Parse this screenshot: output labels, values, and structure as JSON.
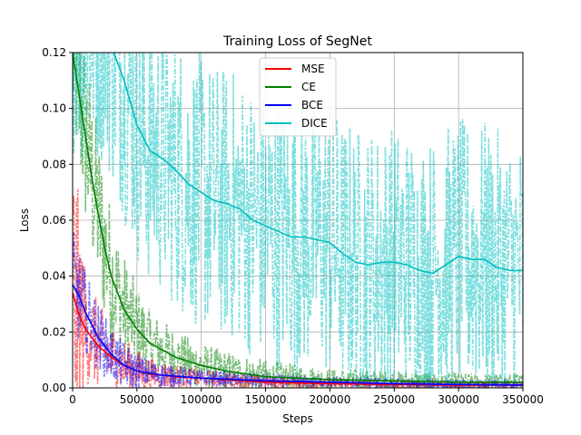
{
  "chart_data": {
    "type": "line",
    "title": "Training Loss of SegNet",
    "xlabel": "Steps",
    "ylabel": "Loss",
    "xlim": [
      0,
      350000
    ],
    "ylim": [
      0,
      0.12
    ],
    "xticks": [
      0,
      50000,
      100000,
      150000,
      200000,
      250000,
      300000,
      350000
    ],
    "xtick_labels": [
      "0",
      "50000",
      "100000",
      "150000",
      "200000",
      "250000",
      "300000",
      "350000"
    ],
    "yticks": [
      0.0,
      0.02,
      0.04,
      0.06,
      0.08,
      0.1,
      0.12
    ],
    "ytick_labels": [
      "0.00",
      "0.02",
      "0.04",
      "0.06",
      "0.08",
      "0.10",
      "0.12"
    ],
    "grid": true,
    "legend_position": "top-center",
    "series": [
      {
        "name": "MSE",
        "color": "#ff0000",
        "smoothed": [
          [
            0,
            0.034
          ],
          [
            5000,
            0.026
          ],
          [
            10000,
            0.021
          ],
          [
            20000,
            0.015
          ],
          [
            30000,
            0.011
          ],
          [
            40000,
            0.008
          ],
          [
            50000,
            0.006
          ],
          [
            60000,
            0.005
          ],
          [
            80000,
            0.004
          ],
          [
            100000,
            0.0035
          ],
          [
            150000,
            0.002
          ],
          [
            200000,
            0.0015
          ],
          [
            250000,
            0.0012
          ],
          [
            300000,
            0.001
          ],
          [
            350000,
            0.001
          ]
        ],
        "raw_spread": [
          [
            0,
            0.06
          ],
          [
            10000,
            0.02
          ],
          [
            30000,
            0.012
          ],
          [
            60000,
            0.006
          ],
          [
            100000,
            0.003
          ],
          [
            200000,
            0.002
          ],
          [
            350000,
            0.0015
          ]
        ]
      },
      {
        "name": "CE",
        "color": "#008000",
        "smoothed": [
          [
            0,
            0.12
          ],
          [
            5000,
            0.105
          ],
          [
            10000,
            0.09
          ],
          [
            15000,
            0.075
          ],
          [
            20000,
            0.062
          ],
          [
            25000,
            0.05
          ],
          [
            30000,
            0.04
          ],
          [
            40000,
            0.028
          ],
          [
            50000,
            0.021
          ],
          [
            60000,
            0.016
          ],
          [
            80000,
            0.011
          ],
          [
            100000,
            0.008
          ],
          [
            120000,
            0.006
          ],
          [
            150000,
            0.004
          ],
          [
            200000,
            0.003
          ],
          [
            250000,
            0.0025
          ],
          [
            300000,
            0.002
          ],
          [
            350000,
            0.002
          ]
        ],
        "raw_spread": [
          [
            0,
            0.03
          ],
          [
            10000,
            0.035
          ],
          [
            20000,
            0.03
          ],
          [
            40000,
            0.02
          ],
          [
            60000,
            0.012
          ],
          [
            100000,
            0.008
          ],
          [
            150000,
            0.006
          ],
          [
            200000,
            0.004
          ],
          [
            350000,
            0.003
          ]
        ]
      },
      {
        "name": "BCE",
        "color": "#0000ff",
        "smoothed": [
          [
            0,
            0.037
          ],
          [
            5000,
            0.033
          ],
          [
            10000,
            0.027
          ],
          [
            20000,
            0.018
          ],
          [
            30000,
            0.012
          ],
          [
            40000,
            0.008
          ],
          [
            50000,
            0.006
          ],
          [
            70000,
            0.0045
          ],
          [
            100000,
            0.0035
          ],
          [
            150000,
            0.0025
          ],
          [
            200000,
            0.002
          ],
          [
            250000,
            0.0015
          ],
          [
            300000,
            0.0012
          ],
          [
            350000,
            0.001
          ]
        ],
        "raw_spread": [
          [
            0,
            0.02
          ],
          [
            10000,
            0.015
          ],
          [
            30000,
            0.01
          ],
          [
            60000,
            0.005
          ],
          [
            100000,
            0.003
          ],
          [
            200000,
            0.002
          ],
          [
            350000,
            0.0015
          ]
        ]
      },
      {
        "name": "DICE",
        "color": "#00bfbf",
        "smoothed": [
          [
            0,
            0.13
          ],
          [
            15000,
            0.13
          ],
          [
            25000,
            0.13
          ],
          [
            32000,
            0.12
          ],
          [
            40000,
            0.11
          ],
          [
            50000,
            0.094
          ],
          [
            60000,
            0.085
          ],
          [
            70000,
            0.082
          ],
          [
            80000,
            0.078
          ],
          [
            90000,
            0.073
          ],
          [
            100000,
            0.07
          ],
          [
            110000,
            0.067
          ],
          [
            120000,
            0.066
          ],
          [
            130000,
            0.064
          ],
          [
            140000,
            0.06
          ],
          [
            150000,
            0.058
          ],
          [
            160000,
            0.056
          ],
          [
            170000,
            0.054
          ],
          [
            180000,
            0.054
          ],
          [
            190000,
            0.053
          ],
          [
            200000,
            0.052
          ],
          [
            210000,
            0.048
          ],
          [
            220000,
            0.045
          ],
          [
            230000,
            0.044
          ],
          [
            240000,
            0.045
          ],
          [
            250000,
            0.045
          ],
          [
            260000,
            0.044
          ],
          [
            270000,
            0.042
          ],
          [
            280000,
            0.041
          ],
          [
            290000,
            0.044
          ],
          [
            300000,
            0.047
          ],
          [
            310000,
            0.046
          ],
          [
            320000,
            0.046
          ],
          [
            330000,
            0.043
          ],
          [
            340000,
            0.042
          ],
          [
            350000,
            0.042
          ]
        ],
        "raw_spread": [
          [
            0,
            0.05
          ],
          [
            50000,
            0.05
          ],
          [
            100000,
            0.05
          ],
          [
            150000,
            0.05
          ],
          [
            200000,
            0.05
          ],
          [
            250000,
            0.05
          ],
          [
            300000,
            0.05
          ],
          [
            350000,
            0.05
          ]
        ]
      }
    ]
  }
}
